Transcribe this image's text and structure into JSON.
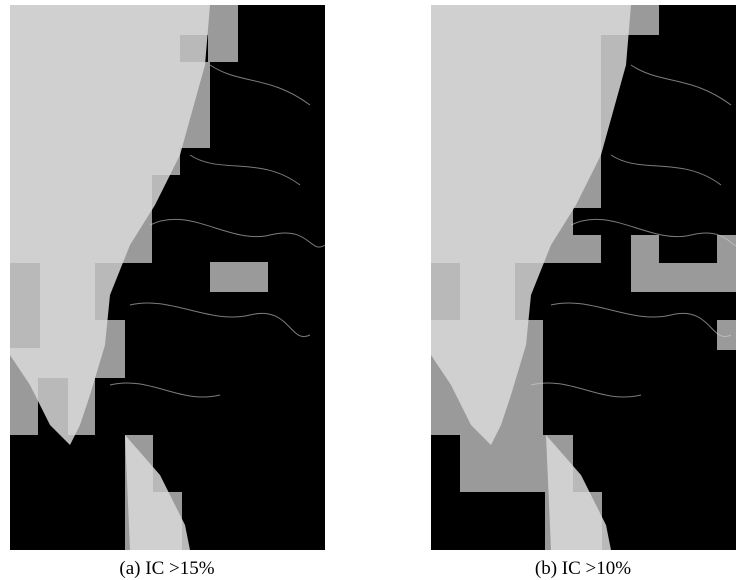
{
  "figures": [
    {
      "caption": "(a) IC >15%"
    },
    {
      "caption": "(b) IC >10%"
    }
  ]
}
